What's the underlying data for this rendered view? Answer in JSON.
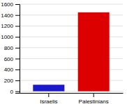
{
  "chart_data": {
    "type": "bar",
    "categories": [
      "Israelis",
      "Palestinians"
    ],
    "values": [
      120,
      1450
    ],
    "colors": [
      "#1a1acc",
      "#dd0000"
    ],
    "ylim": [
      -30,
      1600
    ],
    "yticks": [
      0,
      200,
      400,
      600,
      800,
      1000,
      1200,
      1400,
      1600
    ],
    "grid": true
  }
}
